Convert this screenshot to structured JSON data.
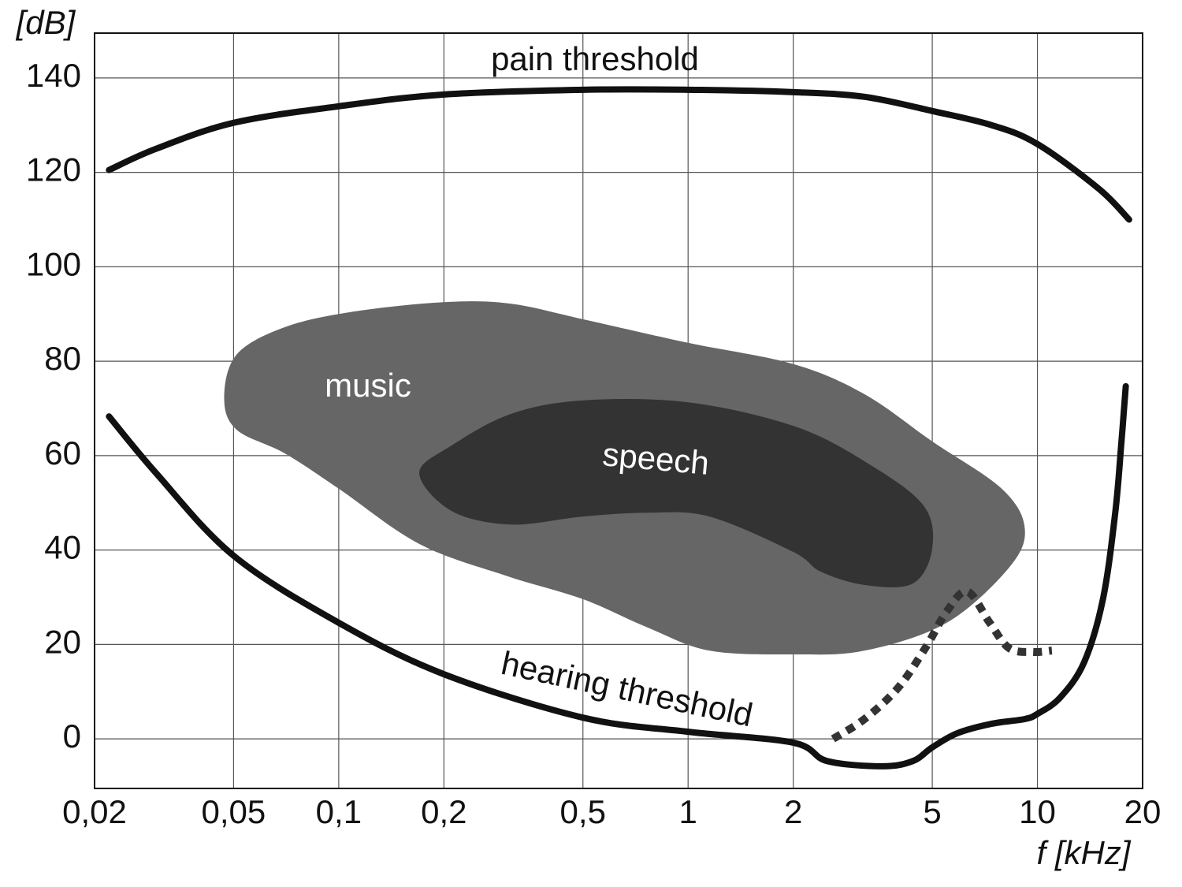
{
  "chart_data": {
    "type": "line",
    "x_axis_label": "f [kHz]",
    "y_axis_label": "[dB]",
    "xscale": "log",
    "xlim": [
      0.02,
      20
    ],
    "ylim": [
      -10.5,
      149.5
    ],
    "xticks": [
      {
        "value": 0.02,
        "label": "0,02"
      },
      {
        "value": 0.05,
        "label": "0,05"
      },
      {
        "value": 0.1,
        "label": "0,1"
      },
      {
        "value": 0.2,
        "label": "0,2"
      },
      {
        "value": 0.5,
        "label": "0,5"
      },
      1,
      2,
      5,
      10,
      20
    ],
    "yticks": [
      0,
      20,
      40,
      60,
      80,
      100,
      120,
      140
    ],
    "grid": true,
    "series": [
      {
        "name": "pain threshold",
        "color": "#111111",
        "style": "solid",
        "x": [
          0.022,
          0.03,
          0.05,
          0.1,
          0.2,
          0.5,
          1,
          2,
          3.2,
          5,
          7.4,
          10,
          15,
          18.3
        ],
        "values": [
          120.5,
          125,
          130.5,
          134,
          136.5,
          137.5,
          137.5,
          137,
          136,
          133,
          130,
          126,
          116.5,
          110
        ]
      },
      {
        "name": "hearing threshold",
        "color": "#111111",
        "style": "solid",
        "x": [
          0.022,
          0.03,
          0.05,
          0.1,
          0.2,
          0.5,
          1,
          2,
          2.5,
          3.6,
          4.4,
          5,
          5.9,
          7.4,
          9.2,
          10,
          11.6,
          13.6,
          15.4,
          16.7,
          17.4,
          17.9
        ],
        "values": [
          68.3,
          56.3,
          38.8,
          24.6,
          13.7,
          4.5,
          1.5,
          -0.8,
          -4.7,
          -5.8,
          -4.7,
          -1.8,
          1.2,
          3.2,
          4.2,
          5.3,
          8.7,
          16.2,
          29.6,
          47.9,
          63,
          74.7
        ]
      },
      {
        "color": "#333333",
        "style": "dotted",
        "x": [
          2.6,
          3.2,
          4.0,
          4.8,
          5.5,
          6.3,
          7.3,
          8.3,
          9.7,
          11
        ],
        "values": [
          0,
          4.2,
          10.9,
          19.5,
          27,
          31.2,
          24.6,
          19.2,
          18.4,
          18.7
        ]
      }
    ],
    "regions": [
      {
        "name": "music",
        "color": "#666666",
        "x": [
          0.047,
          0.051,
          0.07,
          0.11,
          0.2,
          0.31,
          0.5,
          1,
          2,
          3.2,
          5,
          7.9,
          9.2,
          8.3,
          5.5,
          3.2,
          2,
          1.15,
          0.76,
          0.5,
          0.3,
          0.17,
          0.1,
          0.07,
          0.051
        ],
        "y": [
          72.2,
          81.4,
          87.2,
          90.5,
          92.5,
          92.2,
          88.9,
          83.9,
          79.4,
          73,
          63,
          53,
          44.6,
          36.3,
          24.6,
          18.7,
          17.9,
          18.7,
          23.7,
          29.6,
          34.6,
          41.3,
          53,
          60.5,
          65.5
        ]
      },
      {
        "name": "speech",
        "color": "#333333",
        "x": [
          0.17,
          0.21,
          0.31,
          0.5,
          1,
          2,
          3.2,
          4.7,
          5.0,
          4.4,
          3.2,
          2.4,
          2,
          1.15,
          0.76,
          0.5,
          0.31,
          0.21
        ],
        "y": [
          56.3,
          62.1,
          68.8,
          71.7,
          71.3,
          66.3,
          58.8,
          49.6,
          40.4,
          32.9,
          32.6,
          35.4,
          39.6,
          47.1,
          47.9,
          47.1,
          45.4,
          48.3
        ]
      }
    ]
  }
}
